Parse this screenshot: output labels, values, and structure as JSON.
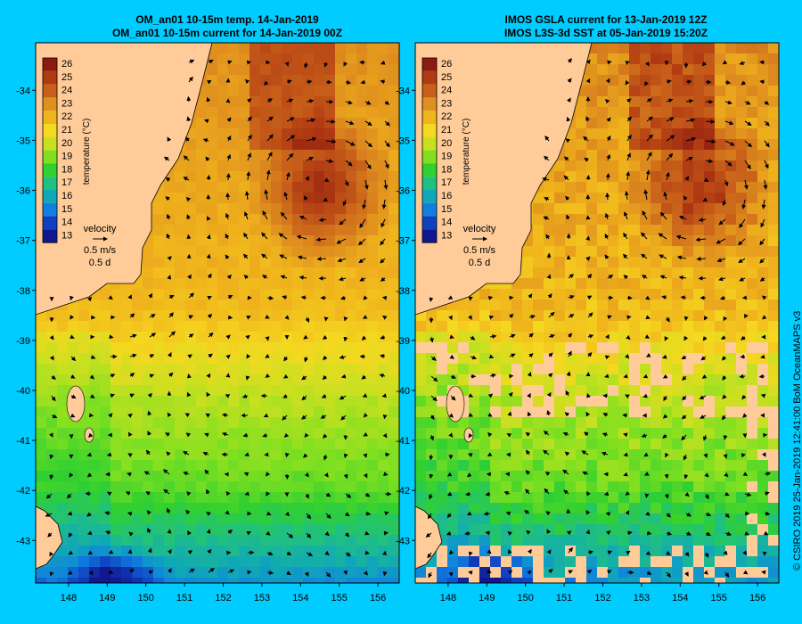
{
  "left_panel": {
    "title_line1": "OM_an01 10-15m temp. 14-Jan-2019",
    "title_line2": "OM_an01 10-15m current for 14-Jan-2019 00Z"
  },
  "right_panel": {
    "title_line1": "IMOS GSLA current for 13-Jan-2019 12Z",
    "title_line2": "IMOS L3S-3d SST at 05-Jan-2019 15:20Z"
  },
  "axes": {
    "lat_labels": [
      "-34",
      "-35",
      "-36",
      "-37",
      "-38",
      "-39",
      "-40",
      "-41",
      "-42",
      "-43"
    ],
    "lon_labels": [
      "148",
      "149",
      "150",
      "151",
      "152",
      "153",
      "154",
      "155",
      "156"
    ],
    "lat_range": [
      -43.6,
      -33.0
    ],
    "lon_range": [
      147.2,
      156.5
    ]
  },
  "colorbar": {
    "title": "temperature (°C)",
    "ticks": [
      "26",
      "25",
      "24",
      "23",
      "22",
      "21",
      "20",
      "19",
      "18",
      "17",
      "16",
      "15",
      "14",
      "13"
    ],
    "colors": [
      "#8b1a10",
      "#b03a12",
      "#c8601a",
      "#e0901e",
      "#f0b41c",
      "#f5d820",
      "#c8e020",
      "#80e020",
      "#30d030",
      "#20c080",
      "#10a8b8",
      "#1080e0",
      "#1040c0",
      "#101890"
    ]
  },
  "velocity_legend": {
    "label": "velocity",
    "speed": "0.5 m/s",
    "duration": "0.5 d"
  },
  "credit": "© CSIRO 2019  25-Jan-2019 12:41:00 BoM OceanMAPS v3",
  "colors": {
    "background": "#00ccff",
    "land": "#ffcc99",
    "arrow": "#000000"
  }
}
